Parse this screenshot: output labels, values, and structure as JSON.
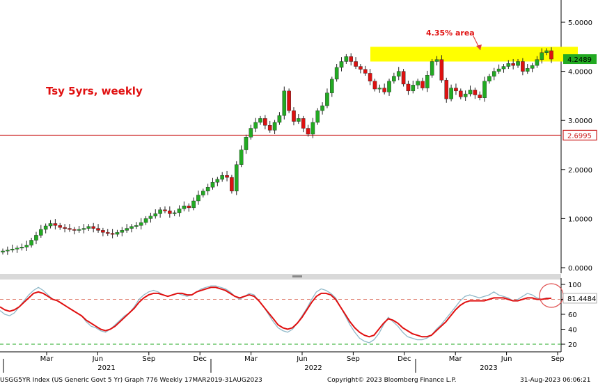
{
  "chart_data": [
    {
      "type": "candlestick",
      "title": "Tsy 5yrs, weekly",
      "yaxis_labels": [
        "5.0000",
        "4.0000",
        "3.0000",
        "2.0000",
        "1.0000",
        "0.0000"
      ],
      "ylim": [
        -0.05,
        5.2
      ],
      "grid": false,
      "x_months": [
        "Mar",
        "Jun",
        "Sep",
        "Dec",
        "Mar",
        "Jun",
        "Sep",
        "Dec",
        "Mar",
        "Jun",
        "Sep"
      ],
      "x_years": [
        "2021",
        "2022",
        "2023"
      ],
      "last_price_label": "4.2489",
      "last_price": 4.2489,
      "reference_line_label": "2.6995",
      "reference_line_value": 2.6995,
      "annotation": "4.35% area",
      "highlight_band": [
        4.2,
        4.5
      ],
      "color_up": "#22aa22",
      "color_down": "#dd1111",
      "reference_line_color": "#cc2222",
      "highlight_color": "#ffff00",
      "closes": [
        0.34,
        0.36,
        0.38,
        0.4,
        0.42,
        0.46,
        0.56,
        0.66,
        0.78,
        0.85,
        0.9,
        0.86,
        0.82,
        0.8,
        0.78,
        0.76,
        0.78,
        0.8,
        0.84,
        0.8,
        0.76,
        0.72,
        0.7,
        0.68,
        0.72,
        0.76,
        0.8,
        0.84,
        0.86,
        0.92,
        1.0,
        1.05,
        1.1,
        1.18,
        1.16,
        1.1,
        1.12,
        1.2,
        1.26,
        1.22,
        1.36,
        1.48,
        1.56,
        1.64,
        1.74,
        1.8,
        1.88,
        1.84,
        1.56,
        2.1,
        2.4,
        2.66,
        2.84,
        2.96,
        3.04,
        2.9,
        2.8,
        2.96,
        3.1,
        3.6,
        3.2,
        2.98,
        3.04,
        2.84,
        2.72,
        2.96,
        3.2,
        3.3,
        3.56,
        3.84,
        4.08,
        4.2,
        4.3,
        4.2,
        4.1,
        4.04,
        3.96,
        3.8,
        3.64,
        3.66,
        3.58,
        3.8,
        3.9,
        4.0,
        3.74,
        3.6,
        3.72,
        3.8,
        3.66,
        3.92,
        4.2,
        4.24,
        3.82,
        3.44,
        3.66,
        3.6,
        3.48,
        3.54,
        3.62,
        3.52,
        3.46,
        3.8,
        3.9,
        4.0,
        4.05,
        4.1,
        4.16,
        4.12,
        4.2,
        4.0,
        4.06,
        4.12,
        4.24,
        4.38,
        4.42,
        4.2489
      ],
      "oscillator": {
        "yaxis_labels": [
          "100",
          "80",
          "60",
          "40",
          "20"
        ],
        "ylim": [
          15,
          105
        ],
        "last_value_label": "81.4484",
        "last_value": 81.4484,
        "overbought_level": 80,
        "oversold_level": 20,
        "fast": [
          65,
          60,
          58,
          62,
          70,
          78,
          86,
          92,
          96,
          92,
          86,
          80,
          78,
          74,
          70,
          66,
          62,
          58,
          50,
          44,
          42,
          38,
          36,
          40,
          46,
          52,
          58,
          62,
          70,
          80,
          86,
          90,
          92,
          90,
          86,
          84,
          86,
          88,
          86,
          84,
          86,
          90,
          94,
          96,
          98,
          98,
          96,
          94,
          90,
          84,
          80,
          84,
          88,
          86,
          78,
          70,
          60,
          50,
          42,
          38,
          36,
          40,
          48,
          58,
          68,
          80,
          90,
          94,
          92,
          88,
          82,
          70,
          58,
          46,
          36,
          28,
          24,
          22,
          26,
          34,
          46,
          56,
          50,
          44,
          36,
          30,
          28,
          26,
          26,
          28,
          32,
          40,
          46,
          54,
          62,
          70,
          78,
          84,
          86,
          84,
          82,
          84,
          86,
          90,
          86,
          84,
          82,
          78,
          80,
          84,
          88,
          86,
          82,
          80,
          82,
          81
        ],
        "slow": [
          70,
          66,
          64,
          66,
          70,
          76,
          82,
          88,
          90,
          88,
          84,
          80,
          78,
          74,
          70,
          66,
          62,
          58,
          52,
          48,
          44,
          40,
          38,
          40,
          44,
          50,
          56,
          62,
          68,
          76,
          82,
          86,
          88,
          88,
          86,
          84,
          86,
          88,
          88,
          86,
          86,
          90,
          92,
          94,
          96,
          96,
          94,
          92,
          88,
          84,
          82,
          84,
          86,
          84,
          78,
          70,
          62,
          54,
          46,
          42,
          40,
          42,
          48,
          56,
          66,
          76,
          84,
          88,
          88,
          86,
          80,
          70,
          60,
          50,
          42,
          36,
          32,
          30,
          32,
          40,
          48,
          54,
          52,
          48,
          42,
          38,
          34,
          32,
          30,
          30,
          32,
          38,
          44,
          50,
          58,
          66,
          72,
          76,
          78,
          78,
          78,
          78,
          80,
          82,
          82,
          82,
          80,
          78,
          78,
          80,
          82,
          82,
          80,
          80,
          81,
          81.4484
        ]
      }
    }
  ],
  "footer": {
    "left": "USGG5YR Index (US Generic Govt 5 Yr) Graph 776  Weekly 17MAR2019-31AUG2023",
    "center": "Copyright© 2023 Bloomberg Finance L.P.",
    "right": "31-Aug-2023 06:06:21"
  }
}
